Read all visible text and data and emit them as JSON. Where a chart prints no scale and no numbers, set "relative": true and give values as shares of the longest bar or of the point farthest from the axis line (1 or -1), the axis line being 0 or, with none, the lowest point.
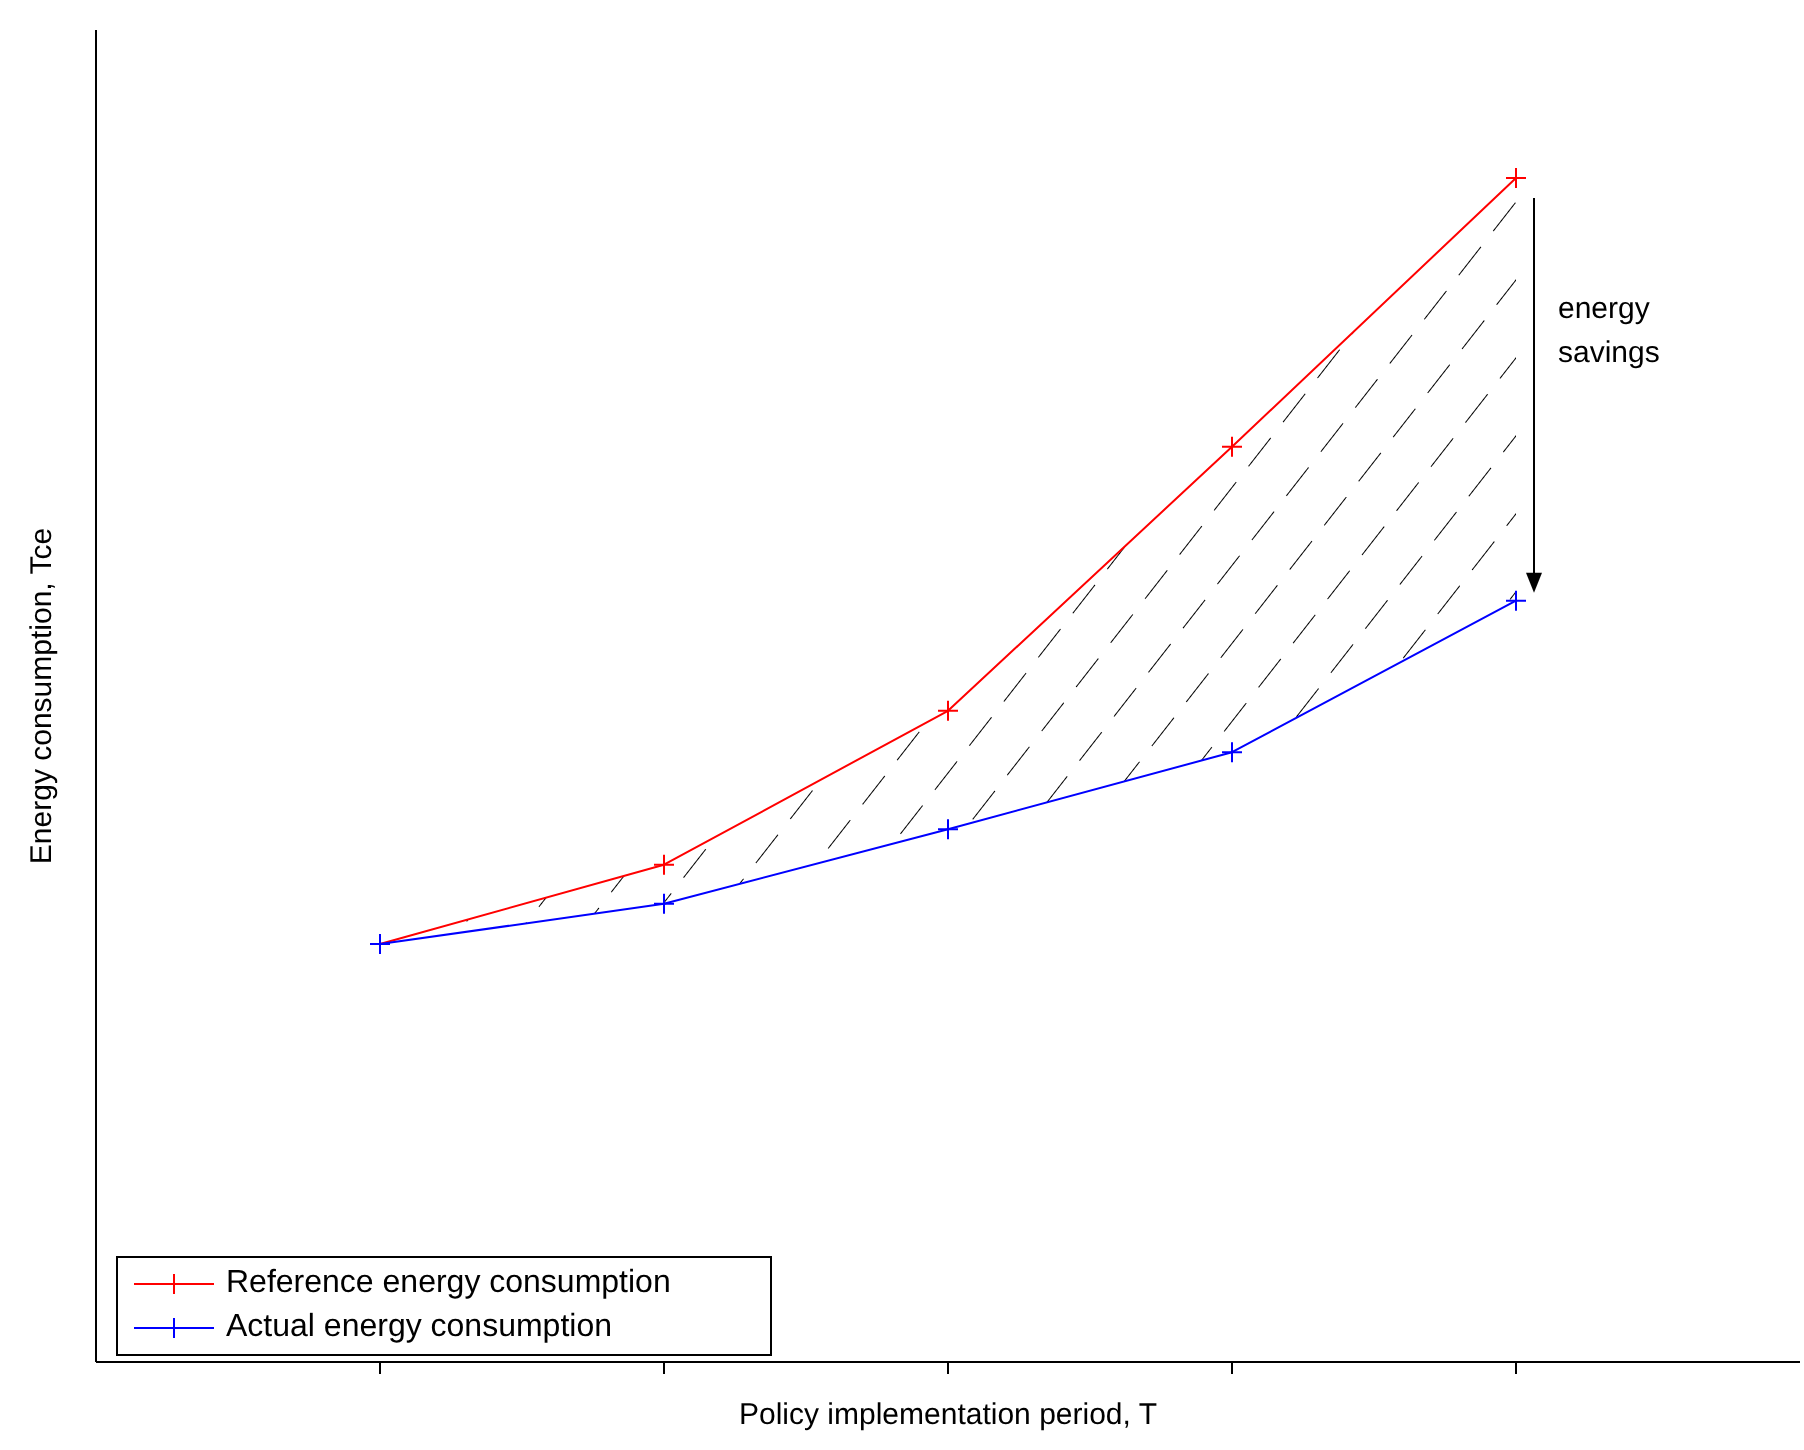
{
  "chart_data": {
    "type": "line",
    "relative": true,
    "xlabel": "Policy implementation period, T",
    "ylabel": "Energy consumption, Tce",
    "categories": [
      null,
      null,
      null,
      null,
      null
    ],
    "series": [
      {
        "name": "Reference energy consumption",
        "color": "#ff0000",
        "values": [
          0.353,
          0.42,
          0.55,
          0.773,
          1
        ]
      },
      {
        "name": "Actual energy consumption",
        "color": "#0000ff",
        "values": [
          0.353,
          0.387,
          0.45,
          0.515,
          0.643
        ]
      }
    ],
    "marker": "cross",
    "line_style": "solid",
    "legend": "bottom left",
    "grid": false,
    "annotations": [
      "energy savings"
    ]
  }
}
